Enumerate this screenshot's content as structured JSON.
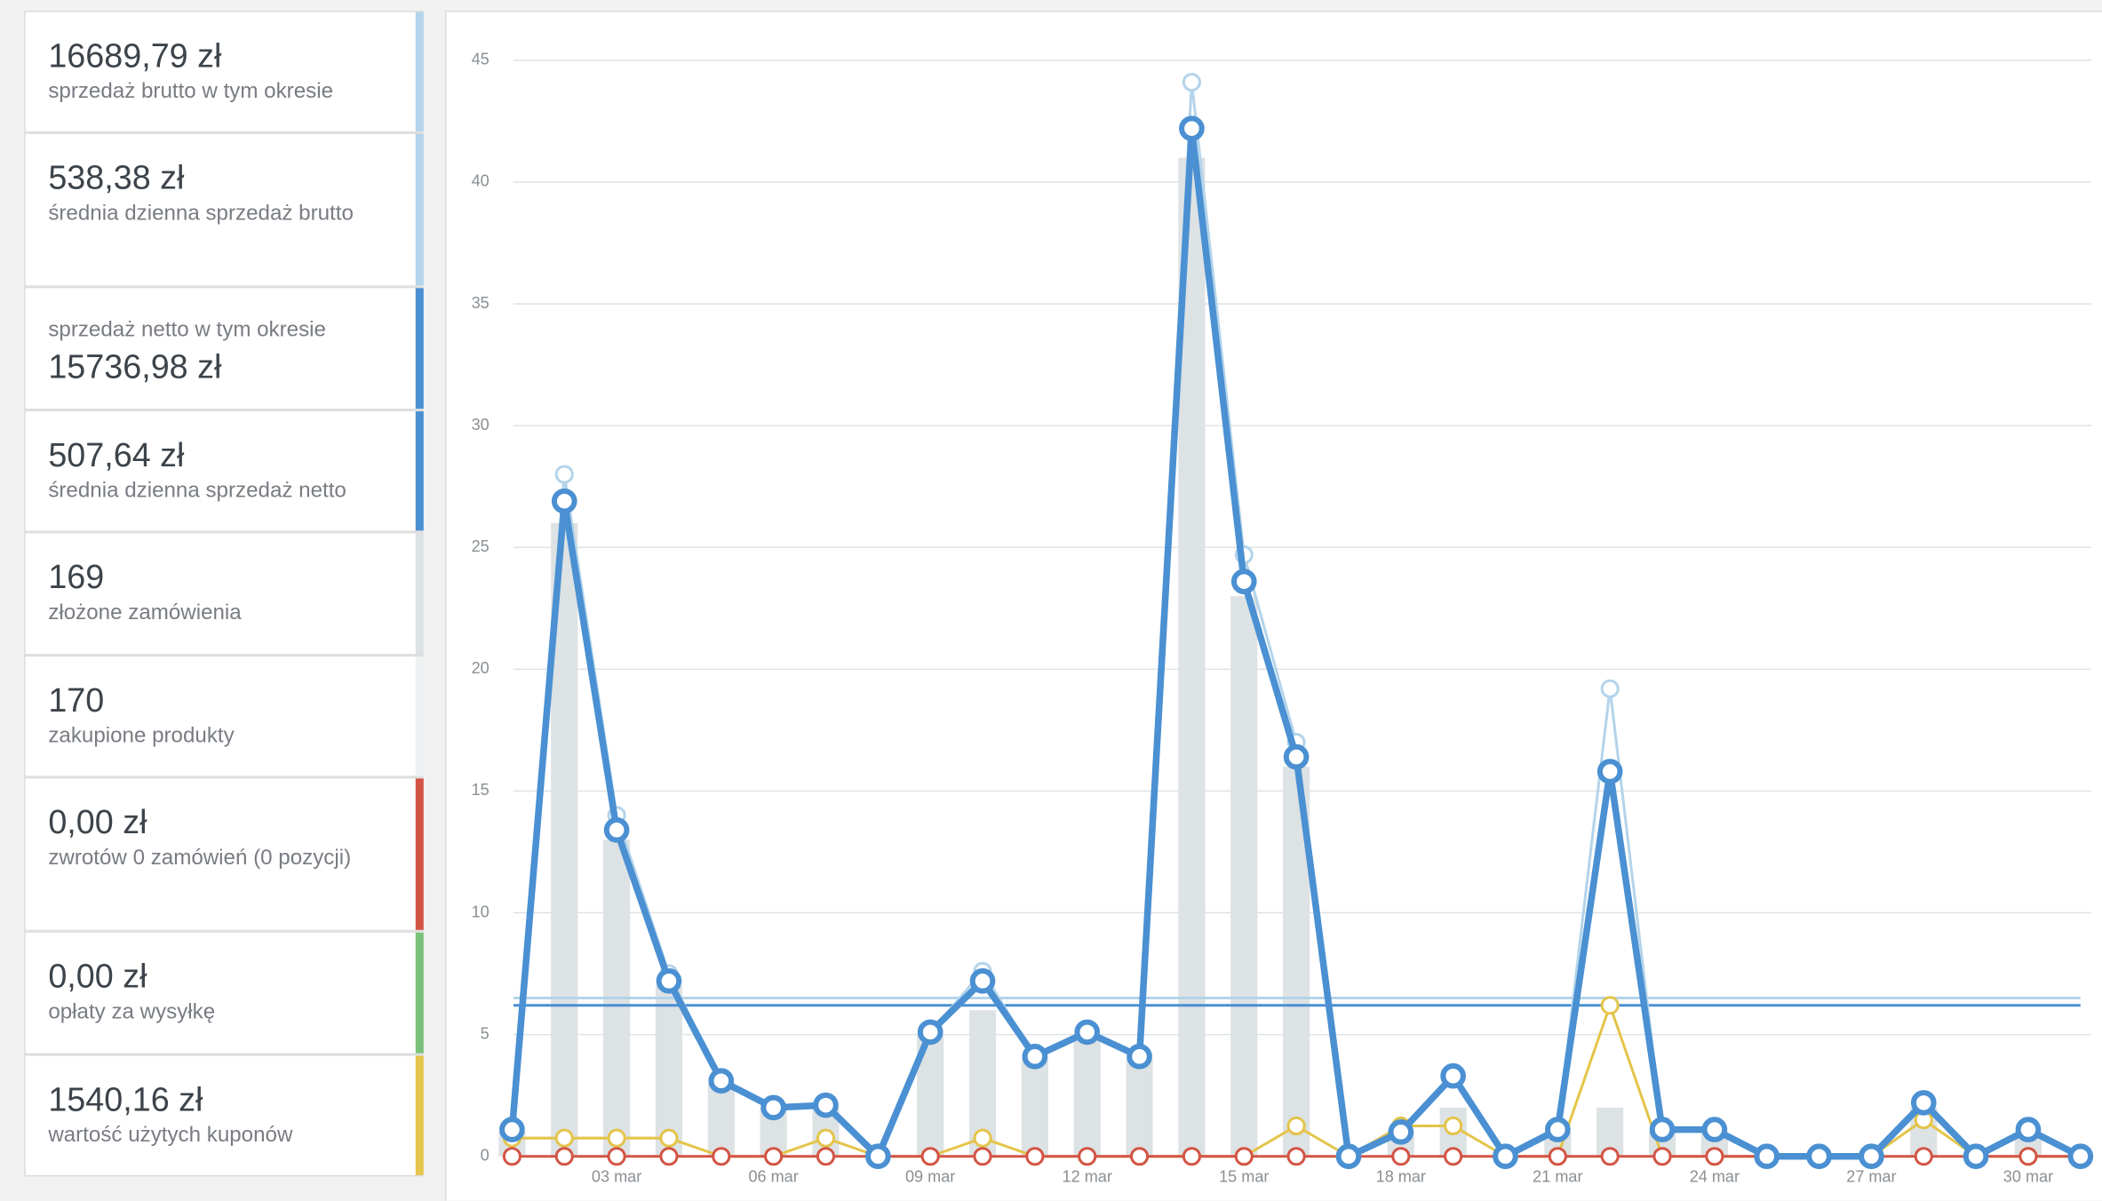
{
  "sidebar": {
    "items": [
      {
        "value": "16689,79 zł",
        "label": "sprzedaż brutto w tym okresie",
        "color": "#b3d4ea"
      },
      {
        "value": "538,38 zł",
        "label": "średnia dzienna sprzedaż brutto",
        "color": "#b3d4ea"
      },
      {
        "value": "15736,98 zł",
        "label": "sprzedaż netto w tym okresie",
        "color": "#4a90d2",
        "label_above": true
      },
      {
        "value": "507,64 zł",
        "label": "średnia dzienna sprzedaż netto",
        "color": "#4a90d2"
      },
      {
        "value": "169",
        "label": "złożone zamówienia",
        "color": "#dde2e4"
      },
      {
        "value": "170",
        "label": "zakupione produkty",
        "color": "#eef1f2"
      },
      {
        "value": "0,00 zł",
        "label": "zwrotów 0 zamówień (0 pozycji)",
        "color": "#d35445"
      },
      {
        "value": "0,00 zł",
        "label": "opłaty za wysyłkę",
        "color": "#7ac27a"
      },
      {
        "value": "1540,16 zł",
        "label": "wartość użytych kuponów",
        "color": "#e4c44a"
      }
    ]
  },
  "chart_data": {
    "type": "line",
    "categories": [
      null,
      null,
      "03 mar",
      null,
      null,
      "06 mar",
      null,
      null,
      "09 mar",
      null,
      null,
      "12 mar",
      null,
      null,
      "15 mar",
      null,
      null,
      "18 mar",
      null,
      null,
      "21 mar",
      null,
      null,
      "24 mar",
      null,
      null,
      "27 mar",
      null,
      null,
      "30 mar",
      null
    ],
    "ylim": [
      0,
      45
    ],
    "yticks": [
      0,
      5,
      10,
      15,
      20,
      25,
      30,
      35,
      40,
      45
    ],
    "grid": true,
    "series": [
      {
        "type": "bar",
        "color": "#dde2e4",
        "values": [
          1,
          26,
          13,
          7,
          3,
          2,
          2,
          0,
          5,
          6,
          4,
          5,
          4,
          41,
          23,
          16,
          0,
          1,
          2,
          0,
          1,
          2,
          1,
          1,
          0,
          0,
          0,
          2,
          0,
          1,
          0
        ]
      },
      {
        "type": "line",
        "color": "#e4c44a",
        "width": 2,
        "values": [
          0.75,
          0.75,
          0.75,
          0.75,
          0,
          0,
          0.75,
          0,
          0,
          0.75,
          0,
          0,
          0,
          0,
          0,
          1.25,
          0,
          1.25,
          1.25,
          0,
          0,
          6.2,
          0,
          0,
          0,
          0,
          0,
          1.5,
          0,
          0,
          0
        ]
      },
      {
        "type": "line",
        "color": "#d35445",
        "width": 2,
        "values": [
          0,
          0,
          0,
          0,
          0,
          0,
          0,
          0,
          0,
          0,
          0,
          0,
          0,
          0,
          0,
          0,
          0,
          0,
          0,
          0,
          0,
          0,
          0,
          0,
          0,
          0,
          0,
          0,
          0,
          0,
          0
        ]
      },
      {
        "type": "line",
        "color": "#b3d4ea",
        "width": 2,
        "values": [
          1.1,
          28,
          14,
          7.5,
          3.1,
          2,
          2.1,
          0,
          5.1,
          7.6,
          4.1,
          5.2,
          4.1,
          44.1,
          24.7,
          17,
          0,
          1.1,
          3.3,
          0,
          1.1,
          19.2,
          1.1,
          1.1,
          0,
          0,
          0,
          2.2,
          0,
          1.1,
          0
        ]
      },
      {
        "type": "line",
        "color": "#4a90d2",
        "width": 5,
        "values": [
          1.1,
          26.9,
          13.4,
          7.2,
          3.1,
          2,
          2.1,
          0,
          5.1,
          7.2,
          4.1,
          5.1,
          4.1,
          42.2,
          23.6,
          16.4,
          0,
          1,
          3.3,
          0,
          1.1,
          15.8,
          1.1,
          1.1,
          0,
          0,
          0,
          2.2,
          0,
          1.1,
          0
        ]
      }
    ],
    "reference_lines": [
      {
        "color": "#b3d4ea",
        "value": 6.5
      },
      {
        "color": "#4a90d2",
        "value": 6.2
      }
    ]
  }
}
